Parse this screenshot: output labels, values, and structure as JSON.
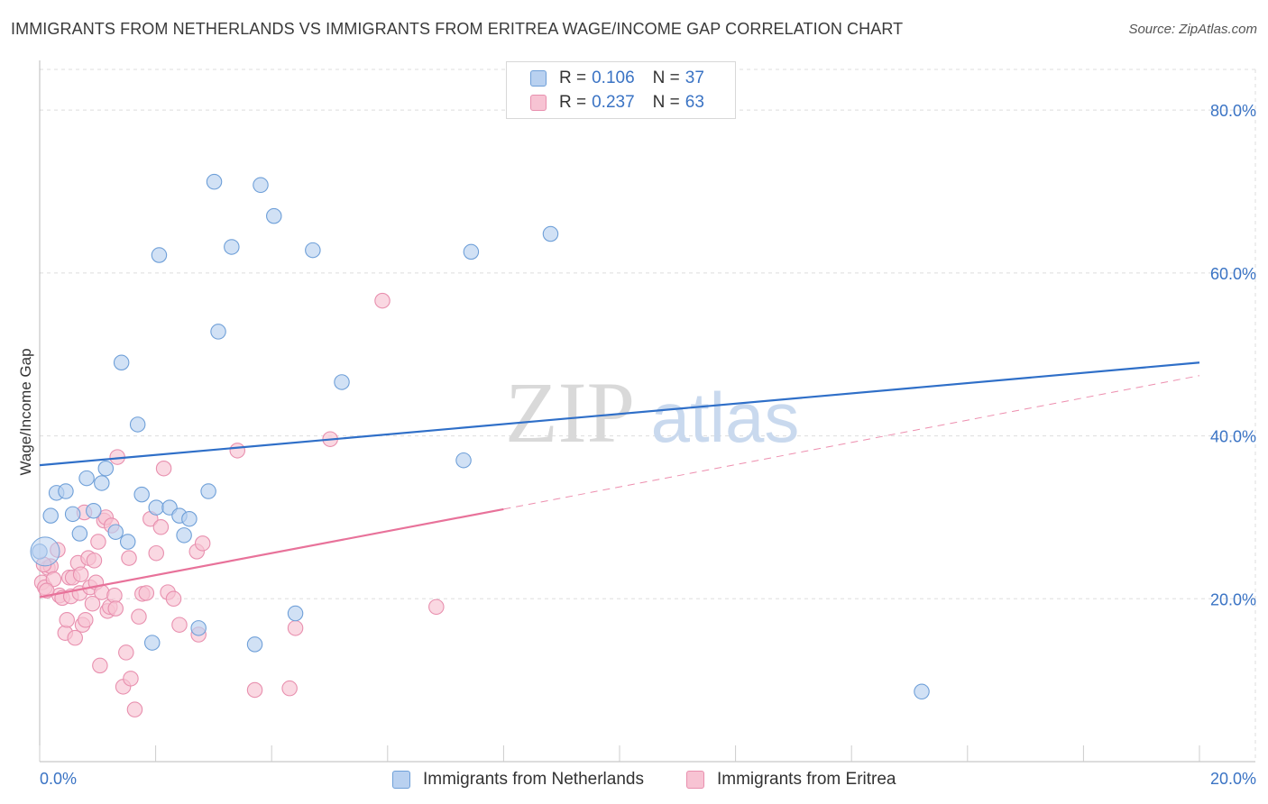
{
  "header": {
    "title": "IMMIGRANTS FROM NETHERLANDS VS IMMIGRANTS FROM ERITREA WAGE/INCOME GAP CORRELATION CHART",
    "source": "Source: ZipAtlas.com"
  },
  "legend": {
    "series1": {
      "r_label": "R =",
      "r_value": "0.106",
      "n_label": "N =",
      "n_value": "37"
    },
    "series2": {
      "r_label": "R =",
      "r_value": "0.237",
      "n_label": "N =",
      "n_value": "63"
    }
  },
  "bottom_legend": {
    "series1_label": "Immigrants from Netherlands",
    "series2_label": "Immigrants from Eritrea"
  },
  "watermark": {
    "zip": "ZIP",
    "atlas": "atlas"
  },
  "colors": {
    "blue_fill": "#b9d1f0",
    "blue_stroke": "#6e9fd8",
    "blue_line": "#2f6fc8",
    "pink_fill": "#f7c3d3",
    "pink_stroke": "#e88fae",
    "pink_line": "#e8729a",
    "axis_text": "#3a73c4",
    "grid": "#dddddd"
  },
  "chart_data": {
    "type": "scatter",
    "title": "IMMIGRANTS FROM NETHERLANDS VS IMMIGRANTS FROM ERITREA WAGE/INCOME GAP CORRELATION CHART",
    "xlabel": "",
    "ylabel": "Wage/Income Gap",
    "xlim": [
      0,
      20
    ],
    "ylim": [
      0,
      85
    ],
    "x_tick_labels": [
      "0.0%",
      "20.0%"
    ],
    "y_ticks": [
      20,
      40,
      60,
      80
    ],
    "y_tick_labels": [
      "20.0%",
      "40.0%",
      "60.0%",
      "80.0%"
    ],
    "grid": true,
    "series": [
      {
        "name": "Immigrants from Netherlands",
        "color": "blue",
        "points": [
          [
            0.0,
            25.8
          ],
          [
            0.19,
            30.2
          ],
          [
            0.29,
            33.0
          ],
          [
            0.45,
            33.2
          ],
          [
            0.57,
            30.4
          ],
          [
            0.69,
            28.0
          ],
          [
            0.81,
            34.8
          ],
          [
            0.93,
            30.8
          ],
          [
            1.07,
            34.2
          ],
          [
            1.14,
            36.0
          ],
          [
            1.31,
            28.2
          ],
          [
            1.52,
            27.0
          ],
          [
            1.41,
            49.0
          ],
          [
            1.69,
            41.4
          ],
          [
            1.76,
            32.8
          ],
          [
            2.01,
            31.2
          ],
          [
            2.24,
            31.2
          ],
          [
            2.41,
            30.2
          ],
          [
            2.58,
            29.8
          ],
          [
            2.49,
            27.8
          ],
          [
            2.91,
            33.2
          ],
          [
            2.06,
            62.2
          ],
          [
            3.01,
            71.2
          ],
          [
            3.31,
            63.2
          ],
          [
            3.08,
            52.8
          ],
          [
            3.81,
            70.8
          ],
          [
            4.04,
            67.0
          ],
          [
            4.71,
            62.8
          ],
          [
            5.21,
            46.6
          ],
          [
            7.31,
            37.0
          ],
          [
            7.44,
            62.6
          ],
          [
            8.81,
            64.8
          ],
          [
            1.94,
            14.6
          ],
          [
            2.74,
            16.4
          ],
          [
            3.71,
            14.4
          ],
          [
            4.41,
            18.2
          ],
          [
            15.21,
            8.6
          ]
        ]
      },
      {
        "name": "Immigrants from Eritrea",
        "color": "pink",
        "points": [
          [
            0.04,
            22.0
          ],
          [
            0.09,
            21.4
          ],
          [
            0.14,
            23.8
          ],
          [
            0.19,
            24.0
          ],
          [
            0.24,
            22.4
          ],
          [
            0.31,
            26.0
          ],
          [
            0.34,
            20.4
          ],
          [
            0.39,
            20.1
          ],
          [
            0.44,
            15.8
          ],
          [
            0.47,
            17.4
          ],
          [
            0.51,
            22.6
          ],
          [
            0.54,
            20.3
          ],
          [
            0.57,
            22.6
          ],
          [
            0.61,
            15.2
          ],
          [
            0.66,
            24.4
          ],
          [
            0.69,
            20.7
          ],
          [
            0.71,
            23.0
          ],
          [
            0.74,
            16.8
          ],
          [
            0.77,
            30.6
          ],
          [
            0.79,
            17.4
          ],
          [
            0.84,
            25.0
          ],
          [
            0.87,
            21.4
          ],
          [
            0.91,
            19.4
          ],
          [
            0.94,
            24.7
          ],
          [
            0.97,
            22.0
          ],
          [
            1.01,
            27.0
          ],
          [
            1.04,
            11.8
          ],
          [
            1.07,
            20.8
          ],
          [
            1.11,
            29.6
          ],
          [
            1.14,
            30.0
          ],
          [
            1.17,
            18.5
          ],
          [
            1.21,
            19.0
          ],
          [
            1.24,
            29.0
          ],
          [
            1.29,
            20.4
          ],
          [
            1.31,
            18.8
          ],
          [
            1.34,
            37.4
          ],
          [
            1.44,
            9.2
          ],
          [
            1.49,
            13.4
          ],
          [
            1.54,
            25.0
          ],
          [
            1.57,
            10.2
          ],
          [
            1.64,
            6.4
          ],
          [
            1.71,
            17.8
          ],
          [
            1.77,
            20.6
          ],
          [
            1.84,
            20.7
          ],
          [
            1.91,
            29.8
          ],
          [
            2.01,
            25.6
          ],
          [
            2.09,
            28.8
          ],
          [
            2.14,
            36.0
          ],
          [
            2.21,
            20.8
          ],
          [
            2.31,
            20.0
          ],
          [
            2.41,
            16.8
          ],
          [
            2.71,
            25.8
          ],
          [
            2.74,
            15.6
          ],
          [
            2.81,
            26.8
          ],
          [
            3.41,
            38.2
          ],
          [
            3.71,
            8.8
          ],
          [
            4.31,
            9.0
          ],
          [
            4.41,
            16.4
          ],
          [
            5.01,
            39.6
          ],
          [
            5.91,
            56.6
          ],
          [
            6.84,
            19.0
          ],
          [
            0.07,
            24.2
          ],
          [
            0.12,
            21.0
          ]
        ]
      }
    ],
    "trendlines": [
      {
        "series": "Immigrants from Netherlands",
        "x": [
          0,
          20
        ],
        "y": [
          36.4,
          49.0
        ],
        "style": "solid"
      },
      {
        "series": "Immigrants from Eritrea",
        "x": [
          0,
          8.0
        ],
        "y": [
          20.2,
          31.0
        ],
        "style": "solid"
      },
      {
        "series": "Immigrants from Eritrea",
        "x": [
          8.0,
          20
        ],
        "y": [
          31.0,
          47.4
        ],
        "style": "dashed"
      }
    ]
  }
}
